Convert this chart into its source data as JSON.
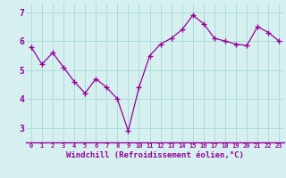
{
  "x": [
    0,
    1,
    2,
    3,
    4,
    5,
    6,
    7,
    8,
    9,
    10,
    11,
    12,
    13,
    14,
    15,
    16,
    17,
    18,
    19,
    20,
    21,
    22,
    23
  ],
  "y": [
    5.8,
    5.2,
    5.6,
    5.1,
    4.6,
    4.2,
    4.7,
    4.4,
    4.0,
    2.9,
    4.4,
    5.5,
    5.9,
    6.1,
    6.4,
    6.9,
    6.6,
    6.1,
    6.0,
    5.9,
    5.85,
    6.5,
    6.3,
    6.0
  ],
  "line_color": "#990099",
  "marker": "+",
  "marker_size": 4,
  "marker_linewidth": 1.0,
  "line_width": 0.9,
  "background_color": "#d5f0ee",
  "grid_color": "#aadddd",
  "xlabel": "Windchill (Refroidissement éolien,°C)",
  "xlabel_color": "#990099",
  "yticks": [
    3,
    4,
    5,
    6,
    7
  ],
  "xlim": [
    -0.5,
    23.5
  ],
  "ylim": [
    2.5,
    7.3
  ],
  "tick_label_color": "#990099",
  "spine_color": "#990099",
  "figsize": [
    3.2,
    2.0
  ],
  "dpi": 100
}
